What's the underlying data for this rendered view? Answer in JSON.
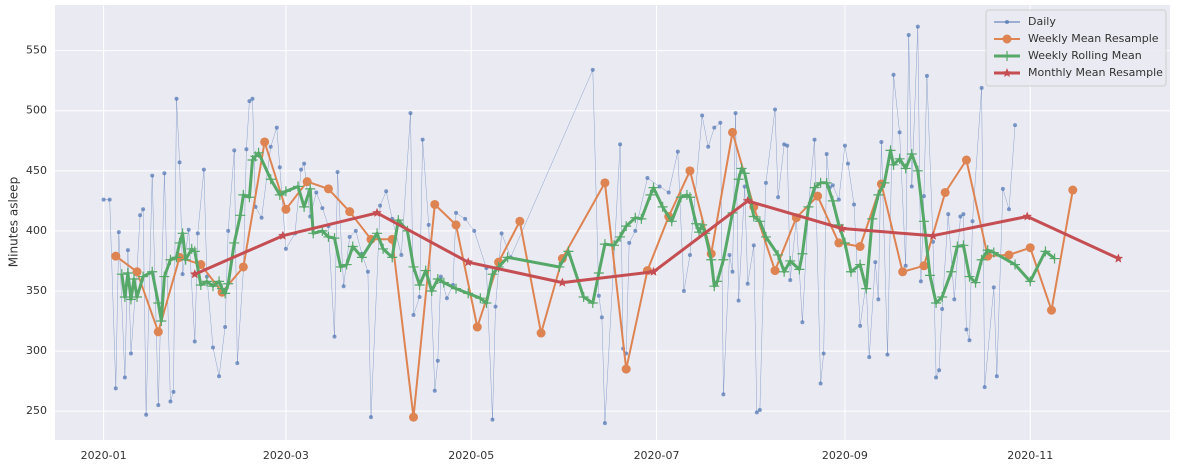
{
  "chart_data": {
    "type": "line",
    "ylabel": "Minutes asleep",
    "xlim": [
      -16,
      351
    ],
    "ylim": [
      226,
      588
    ],
    "xticks": [
      {
        "value": 0,
        "label": "2020-01"
      },
      {
        "value": 60,
        "label": "2020-03"
      },
      {
        "value": 121,
        "label": "2020-05"
      },
      {
        "value": 182,
        "label": "2020-07"
      },
      {
        "value": 244,
        "label": "2020-09"
      },
      {
        "value": 305,
        "label": "2020-11"
      }
    ],
    "yticks": [
      250,
      300,
      350,
      400,
      450,
      500,
      550
    ],
    "grid": true,
    "legend": "upper right",
    "series": [
      {
        "name": "Daily",
        "color": "#4c72b0",
        "marker": "dot",
        "width": 0.5,
        "x": [
          0,
          2,
          4,
          5,
          7,
          8,
          9,
          11,
          12,
          13,
          14,
          16,
          18,
          20,
          22,
          23,
          24,
          25,
          26,
          28,
          30,
          31,
          33,
          34,
          36,
          38,
          40,
          41,
          43,
          44,
          46,
          47,
          48,
          49,
          50,
          52,
          55,
          57,
          58,
          60,
          63,
          65,
          66,
          68,
          70,
          72,
          74,
          76,
          77,
          79,
          81,
          83,
          85,
          87,
          88,
          91,
          93,
          95,
          98,
          101,
          102,
          104,
          105,
          107,
          109,
          110,
          111,
          113,
          115,
          116,
          119,
          122,
          126,
          128,
          129,
          131,
          134,
          161,
          163,
          164,
          165,
          170,
          171,
          172,
          173,
          175,
          179,
          183,
          186,
          189,
          191,
          193,
          197,
          199,
          201,
          203,
          204,
          206,
          207,
          208,
          209,
          211,
          212,
          214,
          215,
          216,
          218,
          221,
          222,
          224,
          225,
          226,
          228,
          230,
          232,
          234,
          236,
          237,
          238,
          239,
          240,
          242,
          244,
          245,
          247,
          249,
          251,
          252,
          254,
          255,
          256,
          258,
          260,
          262,
          264,
          265,
          266,
          268,
          269,
          270,
          271,
          273,
          274,
          275,
          276,
          278,
          280,
          282,
          283,
          284,
          285,
          286,
          289,
          290,
          293,
          294,
          296,
          298,
          300
        ],
        "values": [
          426,
          426,
          269,
          399,
          278,
          384,
          298,
          368,
          413,
          418,
          247,
          446,
          255,
          448,
          258,
          266,
          510,
          457,
          364,
          401,
          308,
          398,
          451,
          362,
          303,
          279,
          320,
          400,
          467,
          290,
          368,
          468,
          508,
          510,
          420,
          411,
          470,
          486,
          453,
          385,
          398,
          451,
          456,
          412,
          432,
          419,
          404,
          312,
          449,
          354,
          395,
          400,
          381,
          366,
          245,
          421,
          433,
          410,
          380,
          498,
          330,
          345,
          476,
          405,
          267,
          292,
          362,
          344,
          355,
          415,
          410,
          400,
          369,
          243,
          337,
          398,
          378,
          534,
          346,
          328,
          240,
          472,
          302,
          298,
          390,
          400,
          444,
          437,
          432,
          466,
          350,
          380,
          496,
          470,
          486,
          490,
          264,
          380,
          366,
          498,
          342,
          437,
          356,
          388,
          249,
          251,
          440,
          501,
          428,
          472,
          471,
          359,
          410,
          324,
          420,
          476,
          273,
          298,
          464,
          436,
          438,
          426,
          471,
          456,
          422,
          321,
          357,
          295,
          374,
          343,
          474,
          297,
          530,
          482,
          371,
          563,
          437,
          570,
          358,
          429,
          529,
          391,
          278,
          284,
          335,
          414,
          343,
          412,
          414,
          318,
          309,
          408,
          519,
          270,
          353,
          279,
          435,
          418,
          488
        ]
      },
      {
        "name": "Weekly Mean Resample",
        "color": "#dd8452",
        "marker": "circle",
        "width": 2,
        "x": [
          4,
          11,
          18,
          25,
          32,
          39,
          46,
          53,
          60,
          67,
          74,
          81,
          88,
          95,
          102,
          109,
          116,
          123,
          130,
          137,
          144,
          151,
          165,
          172,
          179,
          186,
          193,
          200,
          207,
          214,
          221,
          228,
          235,
          242,
          249,
          256,
          263,
          270,
          277,
          284,
          291,
          298,
          305,
          312,
          319
        ],
        "values": [
          379,
          366,
          316,
          378,
          372,
          349,
          370,
          474,
          418,
          441,
          435,
          416,
          393,
          393,
          245,
          422,
          405,
          320,
          374,
          408,
          315,
          377,
          440,
          285,
          367,
          412,
          450,
          381,
          482,
          420,
          367,
          411,
          429,
          390,
          387,
          439,
          366,
          371,
          432,
          459,
          379,
          380,
          386,
          334,
          434
        ]
      },
      {
        "name": "Weekly Rolling Mean",
        "color": "#55a868",
        "marker": "plus",
        "width": 3,
        "x": [
          6,
          7,
          8,
          9,
          10,
          11,
          13,
          16,
          18,
          19,
          20,
          22,
          24,
          25,
          26,
          27,
          29,
          30,
          32,
          34,
          36,
          38,
          39,
          40,
          41,
          43,
          45,
          46,
          48,
          49,
          50,
          51,
          55,
          58,
          60,
          64,
          66,
          68,
          69,
          72,
          74,
          76,
          78,
          80,
          82,
          85,
          90,
          92,
          95,
          97,
          100,
          102,
          104,
          106,
          108,
          110,
          112,
          116,
          120,
          124,
          126,
          128,
          130,
          133,
          150,
          153,
          158,
          161,
          163,
          165,
          168,
          170,
          172,
          175,
          177,
          180,
          181,
          184,
          187,
          190,
          192,
          193,
          195,
          196,
          197,
          198,
          200,
          201,
          202,
          204,
          207,
          209,
          210,
          211,
          214,
          216,
          218,
          222,
          224,
          226,
          229,
          230,
          232,
          234,
          236,
          238,
          240,
          242,
          244,
          246,
          249,
          251,
          253,
          255,
          257,
          259,
          260,
          262,
          264,
          266,
          268,
          270,
          272,
          274,
          276,
          279,
          281,
          283,
          285,
          287,
          289,
          291,
          293,
          300,
          305,
          310,
          313
        ],
        "values": [
          364,
          345,
          365,
          343,
          360,
          345,
          362,
          366,
          340,
          325,
          362,
          376,
          378,
          390,
          398,
          376,
          385,
          383,
          355,
          358,
          354,
          358,
          352,
          348,
          356,
          390,
          413,
          430,
          428,
          459,
          462,
          465,
          443,
          430,
          433,
          437,
          420,
          435,
          398,
          400,
          395,
          394,
          370,
          372,
          387,
          378,
          398,
          385,
          378,
          409,
          400,
          370,
          355,
          367,
          350,
          360,
          357,
          352,
          348,
          344,
          340,
          364,
          370,
          378,
          370,
          383,
          345,
          340,
          365,
          389,
          388,
          395,
          404,
          411,
          410,
          430,
          436,
          420,
          408,
          428,
          430,
          428,
          406,
          399,
          405,
          398,
          376,
          354,
          358,
          376,
          415,
          443,
          452,
          448,
          412,
          408,
          395,
          380,
          366,
          375,
          368,
          381,
          420,
          436,
          440,
          440,
          425,
          405,
          390,
          366,
          372,
          352,
          410,
          430,
          440,
          467,
          455,
          460,
          452,
          464,
          450,
          408,
          363,
          340,
          345,
          366,
          387,
          388,
          362,
          357,
          376,
          384,
          382,
          372,
          358,
          383,
          377
        ]
      },
      {
        "name": "Monthly Mean Resample",
        "color": "#c44e52",
        "marker": "star",
        "width": 3,
        "x": [
          30,
          59,
          90,
          120,
          151,
          181,
          212,
          243,
          273,
          304,
          334
        ],
        "values": [
          364,
          396,
          415,
          374,
          357,
          366,
          425,
          402,
          396,
          412,
          377
        ]
      }
    ]
  }
}
